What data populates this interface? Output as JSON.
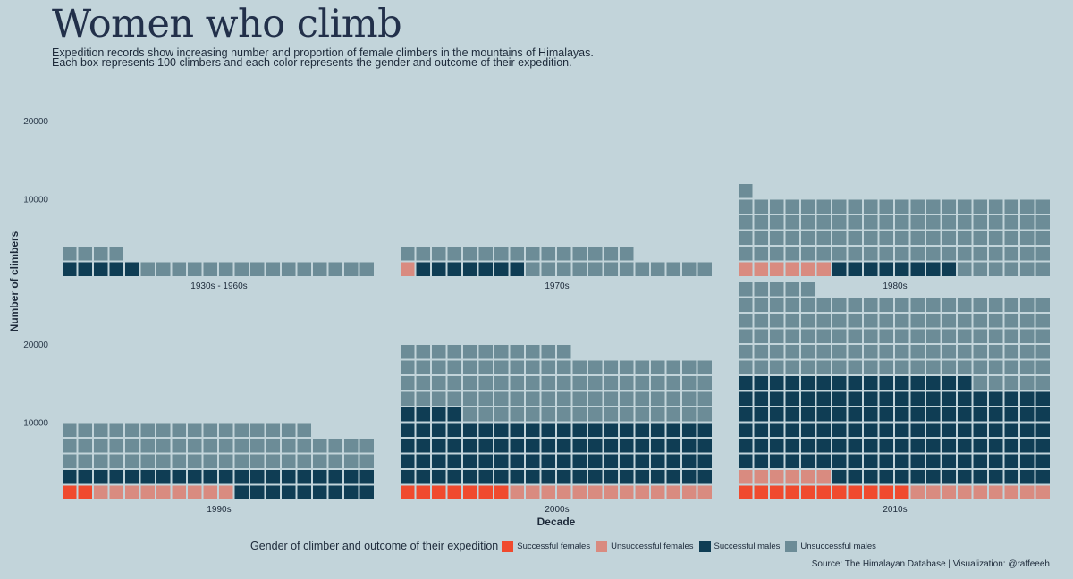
{
  "header": {
    "title": "Women who climb",
    "subtitle_line1": "Expedition records show increasing number and proportion of female climbers in the mountains of Himalayas.",
    "subtitle_line2": "Each box represents 100 climbers and each color represents the gender and outcome of their expedition."
  },
  "source": "Source: The Himalayan Database | Visualization: @raffeeeh",
  "legend": {
    "title": "Gender of climber and outcome of their expedition",
    "items": [
      {
        "label": "Successful females",
        "color": "#f04a2e"
      },
      {
        "label": "Unsuccessful females",
        "color": "#d98b80"
      },
      {
        "label": "Successful males",
        "color": "#0f3d54"
      },
      {
        "label": "Unsuccessful males",
        "color": "#6c8c97"
      }
    ]
  },
  "chart_data": {
    "type": "waffle",
    "unit": "Each box represents 100 climbers",
    "xlabel": "Decade",
    "ylabel": "Number of climbers",
    "ytick_labels": [
      "10000",
      "20000"
    ],
    "columns_per_row": 20,
    "category_order": [
      "Successful females",
      "Unsuccessful females",
      "Successful males",
      "Unsuccessful males"
    ],
    "panels": [
      {
        "label": "1930s - 1960s",
        "boxes": {
          "Successful females": 0,
          "Unsuccessful females": 0,
          "Successful males": 5,
          "Unsuccessful males": 19
        }
      },
      {
        "label": "1970s",
        "boxes": {
          "Successful females": 0,
          "Unsuccessful females": 1,
          "Successful males": 7,
          "Unsuccessful males": 27
        }
      },
      {
        "label": "1980s",
        "boxes": {
          "Successful females": 0,
          "Unsuccessful females": 6,
          "Successful males": 8,
          "Unsuccessful males": 87
        }
      },
      {
        "label": "1990s",
        "boxes": {
          "Successful females": 2,
          "Unsuccessful females": 9,
          "Successful males": 29,
          "Unsuccessful males": 56
        }
      },
      {
        "label": "2000s",
        "boxes": {
          "Successful females": 7,
          "Unsuccessful females": 13,
          "Successful males": 84,
          "Unsuccessful males": 87
        }
      },
      {
        "label": "2010s",
        "boxes": {
          "Successful females": 11,
          "Unsuccessful females": 15,
          "Successful males": 129,
          "Unsuccessful males": 110
        }
      }
    ]
  }
}
